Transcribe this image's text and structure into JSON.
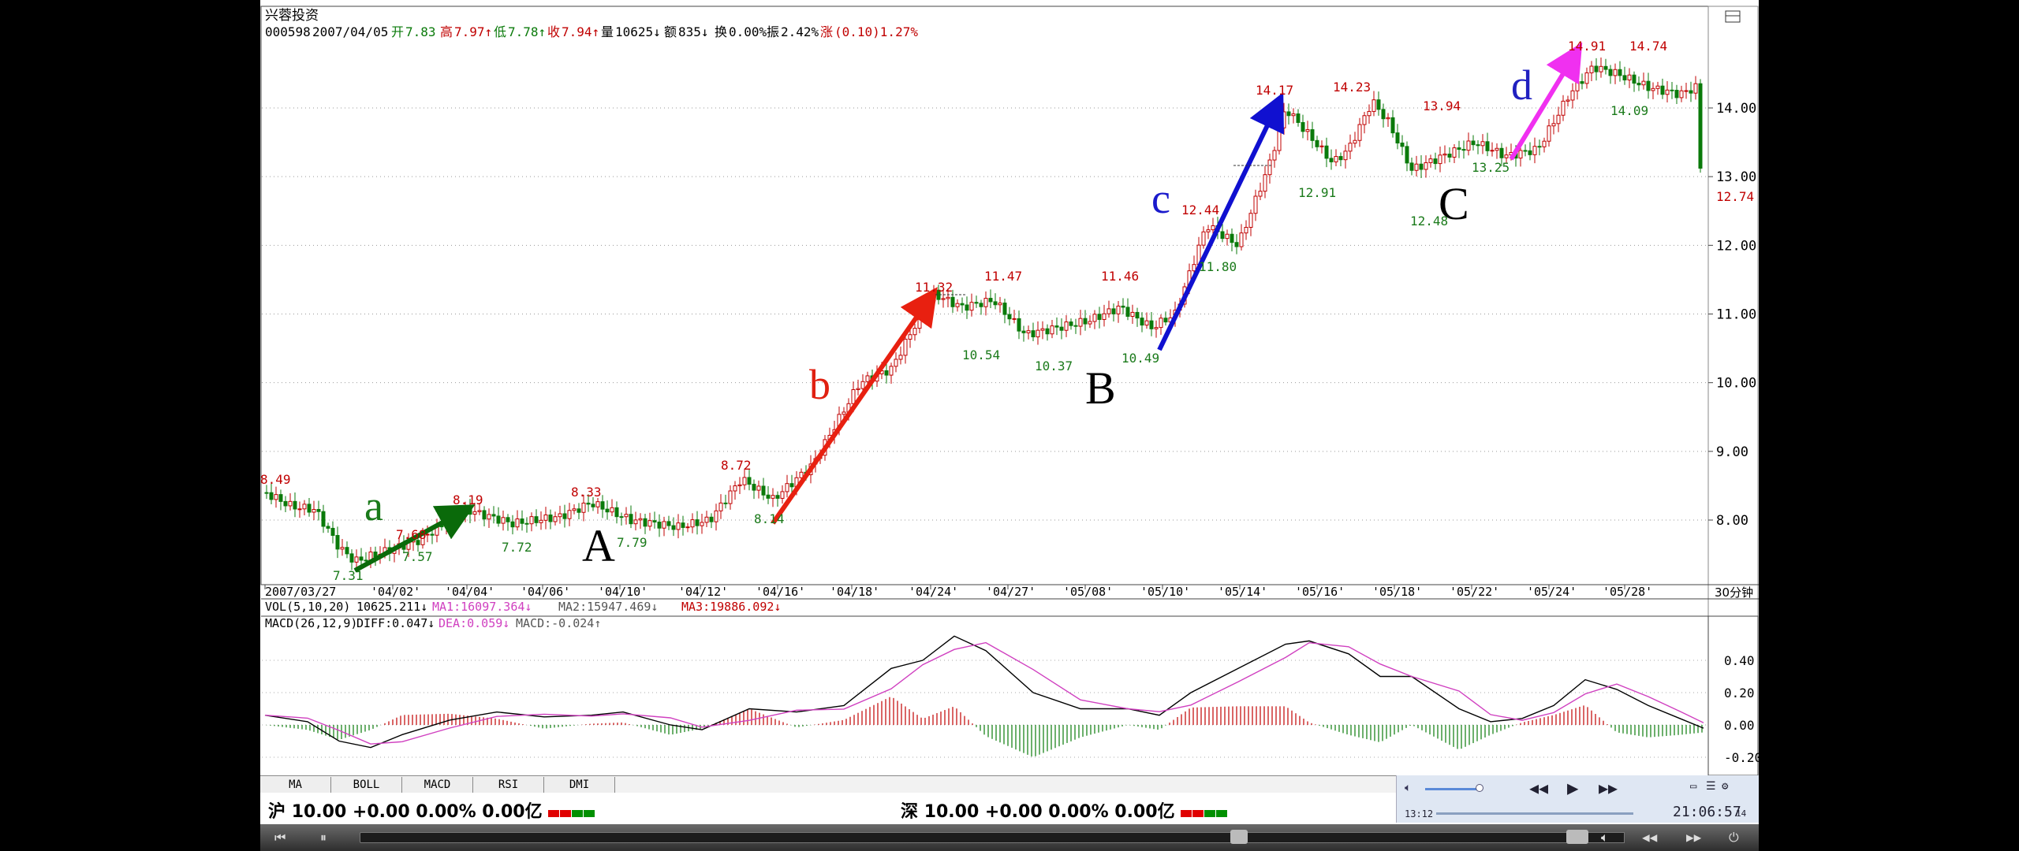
{
  "window": {
    "title": "兴蓉投资"
  },
  "info_bar": {
    "code": "000598",
    "date": "2007/04/05",
    "open_label": "开",
    "open": "7.83",
    "high_label": "高",
    "high": "7.97↑",
    "low_label": "低",
    "low": "7.78↑",
    "close_label": "收",
    "close": "7.94↑",
    "volume_label": "量",
    "volume": "10625↓",
    "amount_label": "额",
    "amount": "835↓",
    "turnover_label": "换",
    "turnover": "0.00%",
    "amplitude_label": "振",
    "amplitude": "2.42%",
    "change_label": "涨",
    "change": "(0.10)1.27%"
  },
  "price_axis": [
    "14.00",
    "13.00",
    "12.00",
    "11.00",
    "10.00",
    "9.00",
    "8.00"
  ],
  "last_price": "12.74",
  "date_axis": [
    "2007/03/27",
    "'04/02'",
    "'04/04'",
    "'04/06'",
    "'04/10'",
    "'04/12'",
    "'04/16'",
    "'04/18'",
    "'04/24'",
    "'04/27'",
    "'05/08'",
    "'05/10'",
    "'05/14'",
    "'05/16'",
    "'05/18'",
    "'05/22'",
    "'05/24'",
    "'05/28'"
  ],
  "period": "30分钟",
  "annotations": {
    "waves": [
      {
        "text": "a",
        "color": "#1a7a1a"
      },
      {
        "text": "b",
        "color": "#e02010"
      },
      {
        "text": "c",
        "color": "#1a1acc"
      },
      {
        "text": "d",
        "color": "#2020c0"
      }
    ],
    "points": [
      {
        "text": "A",
        "color": "#000000"
      },
      {
        "text": "B",
        "color": "#000000"
      },
      {
        "text": "C",
        "color": "#000000"
      }
    ],
    "price_labels": [
      {
        "text": "8.49",
        "color": "#c00000"
      },
      {
        "text": "7.31",
        "color": "#1a7a1a"
      },
      {
        "text": "7.68",
        "color": "#c00000"
      },
      {
        "text": "7.57",
        "color": "#1a7a1a"
      },
      {
        "text": "8.19",
        "color": "#c00000"
      },
      {
        "text": "7.72",
        "color": "#1a7a1a"
      },
      {
        "text": "8.33",
        "color": "#c00000"
      },
      {
        "text": "7.79",
        "color": "#1a7a1a"
      },
      {
        "text": "8.72",
        "color": "#c00000"
      },
      {
        "text": "8.14",
        "color": "#1a7a1a"
      },
      {
        "text": "11.32",
        "color": "#c00000"
      },
      {
        "text": "11.47",
        "color": "#c00000"
      },
      {
        "text": "10.54",
        "color": "#1a7a1a"
      },
      {
        "text": "10.37",
        "color": "#1a7a1a"
      },
      {
        "text": "11.46",
        "color": "#c00000"
      },
      {
        "text": "10.49",
        "color": "#1a7a1a"
      },
      {
        "text": "12.44",
        "color": "#c00000"
      },
      {
        "text": "11.80",
        "color": "#1a7a1a"
      },
      {
        "text": "14.17",
        "color": "#c00000"
      },
      {
        "text": "12.91",
        "color": "#1a7a1a"
      },
      {
        "text": "14.23",
        "color": "#c00000"
      },
      {
        "text": "13.94",
        "color": "#c00000"
      },
      {
        "text": "12.48",
        "color": "#1a7a1a"
      },
      {
        "text": "13.25",
        "color": "#1a7a1a"
      },
      {
        "text": "14.91",
        "color": "#c00000"
      },
      {
        "text": "14.74",
        "color": "#c00000"
      },
      {
        "text": "14.09",
        "color": "#1a7a1a"
      }
    ]
  },
  "vol_bar": {
    "label": "VOL(5,10,20)",
    "value": "10625.211↓",
    "ma1": "MA1:16097.364↓",
    "ma2": "MA2:15947.469↓",
    "ma3": "MA3:19886.092↓"
  },
  "macd_bar": {
    "label": "MACD(26,12,9)",
    "diff": "DIFF:0.047↓",
    "dea": "DEA:0.059↓",
    "macd": "MACD:-0.024↑",
    "axis": [
      "0.40",
      "0.20",
      "0.00",
      "-0.20"
    ]
  },
  "indicator_tabs": [
    "MA",
    "BOLL",
    "MACD",
    "RSI",
    "DMI"
  ],
  "market": {
    "sh": {
      "name": "沪",
      "text": "10.00 +0.00 0.00% 0.00亿"
    },
    "sz": {
      "name": "深",
      "text": "10.00 +0.00 0.00% 0.00亿"
    }
  },
  "player": {
    "current_time": "13:12",
    "clock": "21:06:57",
    "end_time": "14"
  },
  "colors": {
    "up": "#c00000",
    "down": "#0a7a0a",
    "diff_line": "#000000",
    "dea_line": "#d040c0"
  }
}
